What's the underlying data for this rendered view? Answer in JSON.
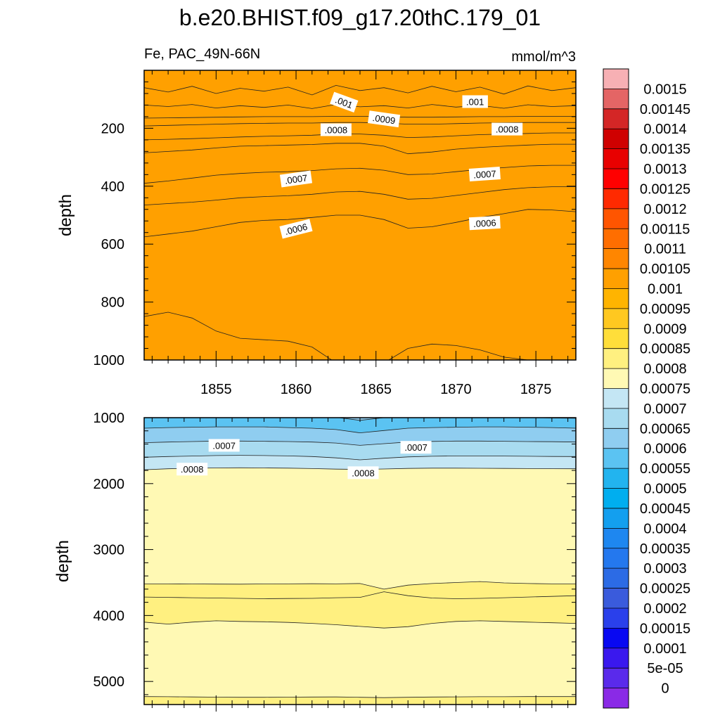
{
  "chart_data": {
    "type": "heatmap",
    "title": "b.e20.BHIST.f09_g17.20thC.179_01",
    "variable_label": "Fe, PAC_49N-66N",
    "units_label": "mmol/m^3",
    "colorbar": {
      "levels": [
        "0.0015",
        "0.00145",
        "0.0014",
        "0.00135",
        "0.0013",
        "0.00125",
        "0.0012",
        "0.00115",
        "0.0011",
        "0.00105",
        "0.001",
        "0.00095",
        "0.0009",
        "0.00085",
        "0.0008",
        "0.00075",
        "0.0007",
        "0.00065",
        "0.0006",
        "0.00055",
        "0.0005",
        "0.00045",
        "0.0004",
        "0.00035",
        "0.0003",
        "0.00025",
        "0.0002",
        "0.00015",
        "0.0001",
        "5e-05",
        "0"
      ],
      "colors": [
        "#f7b0b4",
        "#e46565",
        "#d42626",
        "#cf0000",
        "#e80000",
        "#ff0000",
        "#ff2a00",
        "#ff5500",
        "#ff6e00",
        "#ff8600",
        "#ffa000",
        "#ffb400",
        "#ffc820",
        "#ffde3a",
        "#fff080",
        "#fff9b4",
        "#c4e6f4",
        "#a8dbf0",
        "#8fcdf0",
        "#5bc3f2",
        "#22b4ef",
        "#00aeef",
        "#139fef",
        "#1e87f0",
        "#2478ee",
        "#2c6be5",
        "#3a5bdc",
        "#2a40eb",
        "#0808f2",
        "#3a18ee",
        "#5a2aeb",
        "#8a2ae6"
      ]
    },
    "panels": [
      {
        "name": "upper",
        "ylabel": "depth",
        "ylim": [
          1000,
          0
        ],
        "yticks": [
          200,
          400,
          600,
          800,
          1000
        ],
        "xlim": [
          1850.5,
          1877.5
        ],
        "xticks": [
          1855,
          1860,
          1865,
          1870,
          1875
        ],
        "x_nodes": [
          1850.5,
          1852,
          1853.5,
          1855,
          1856.5,
          1858,
          1859.5,
          1861,
          1862.5,
          1864,
          1865.5,
          1867,
          1868.5,
          1870,
          1871.5,
          1873,
          1874.5,
          1876,
          1877.5
        ],
        "contours": [
          {
            "level": 0.0006,
            "depths": [
              850,
              835,
              855,
              900,
              925,
              930,
              935,
              955,
              1010,
              1010,
              1010,
              960,
              945,
              950,
              965,
              990,
              1000,
              1010,
              1010
            ]
          },
          {
            "level": 0.00065,
            "depths": [
              575,
              565,
              555,
              540,
              525,
              518,
              515,
              508,
              500,
              500,
              515,
              545,
              540,
              525,
              508,
              495,
              480,
              482,
              488
            ]
          },
          {
            "level": 0.0007,
            "depths": [
              465,
              460,
              455,
              448,
              440,
              436,
              433,
              428,
              420,
              418,
              428,
              445,
              442,
              432,
              422,
              412,
              405,
              402,
              402
            ]
          },
          {
            "level": 0.00075,
            "depths": [
              390,
              382,
              372,
              362,
              356,
              352,
              350,
              346,
              340,
              338,
              345,
              360,
              358,
              350,
              342,
              336,
              330,
              328,
              328
            ]
          },
          {
            "level": 0.0008,
            "depths": [
              285,
              280,
              275,
              268,
              262,
              260,
              258,
              256,
              252,
              252,
              262,
              288,
              282,
              272,
              266,
              262,
              258,
              255,
              255
            ]
          },
          {
            "level": 0.00085,
            "depths": [
              240,
              238,
              236,
              233,
              230,
              228,
              226,
              224,
              220,
              220,
              224,
              232,
              230,
              226,
              222,
              220,
              218,
              216,
              216
            ]
          },
          {
            "level": 0.0009,
            "depths": [
              192,
              190,
              188,
              186,
              184,
              183,
              182,
              182,
              180,
              180,
              182,
              186,
              186,
              184,
              182,
              181,
              180,
              180,
              180
            ]
          },
          {
            "level": 0.00095,
            "depths": [
              165,
              164,
              163,
              162,
              161,
              160,
              160,
              160,
              159,
              159,
              160,
              162,
              162,
              161,
              160,
              160,
              159,
              159,
              159
            ]
          },
          {
            "level": 0.001,
            "depths": [
              120,
              125,
              118,
              130,
              122,
              128,
              120,
              132,
              118,
              126,
              122,
              130,
              118,
              127,
              121,
              131,
              119,
              125,
              122
            ]
          },
          {
            "level": 0.00105,
            "depths": [
              60,
              75,
              55,
              80,
              62,
              72,
              58,
              85,
              52,
              70,
              60,
              78,
              55,
              74,
              58,
              82,
              54,
              70,
              60
            ]
          }
        ],
        "contour_labels": [
          {
            "text": ".001",
            "x": 1863,
            "depth": 110,
            "angle": 20
          },
          {
            "text": ".001",
            "x": 1871.2,
            "depth": 108,
            "angle": 0
          },
          {
            "text": ".0009",
            "x": 1865.5,
            "depth": 168,
            "angle": 8
          },
          {
            "text": ".0008",
            "x": 1862.5,
            "depth": 205,
            "angle": 0
          },
          {
            "text": ".0008",
            "x": 1873.2,
            "depth": 203,
            "angle": 0
          },
          {
            "text": ".0007",
            "x": 1860,
            "depth": 375,
            "angle": -8
          },
          {
            "text": ".0007",
            "x": 1871.8,
            "depth": 358,
            "angle": -4
          },
          {
            "text": ".0006",
            "x": 1860,
            "depth": 547,
            "angle": -14
          },
          {
            "text": ".0006",
            "x": 1871.8,
            "depth": 527,
            "angle": -3
          }
        ]
      },
      {
        "name": "lower",
        "ylabel": "depth",
        "ylim": [
          5350,
          1000
        ],
        "yticks": [
          1000,
          2000,
          3000,
          4000,
          5000
        ],
        "xlim": [
          1850.5,
          1877.5
        ],
        "xticks": [
          1855,
          1860,
          1865,
          1870,
          1875
        ],
        "x_nodes": [
          1850.5,
          1852,
          1853.5,
          1855,
          1856.5,
          1858,
          1859.5,
          1861,
          1862.5,
          1864,
          1865.5,
          1867,
          1868.5,
          1870,
          1871.5,
          1873,
          1874.5,
          1876,
          1877.5
        ],
        "contours": [
          {
            "level": 0.0006,
            "depths": [
              995,
              995,
              995,
              995,
              995,
              995,
              995,
              995,
              995,
              1040,
              1000,
              995,
              995,
              995,
              995,
              995,
              995,
              1005,
              1010
            ]
          },
          {
            "level": 0.00065,
            "depths": [
              1160,
              1150,
              1145,
              1140,
              1140,
              1140,
              1150,
              1160,
              1180,
              1230,
              1195,
              1160,
              1150,
              1145,
              1140,
              1140,
              1145,
              1150,
              1160
            ]
          },
          {
            "level": 0.0007,
            "depths": [
              1380,
              1370,
              1362,
              1355,
              1355,
              1358,
              1362,
              1370,
              1385,
              1420,
              1395,
              1370,
              1360,
              1355,
              1355,
              1358,
              1362,
              1365,
              1370
            ]
          },
          {
            "level": 0.00075,
            "depths": [
              1600,
              1590,
              1582,
              1575,
              1572,
              1575,
              1580,
              1590,
              1610,
              1640,
              1615,
              1595,
              1585,
              1580,
              1580,
              1582,
              1585,
              1588,
              1590
            ]
          },
          {
            "level": 0.0008,
            "depths": [
              1790,
              1775,
              1768,
              1762,
              1760,
              1762,
              1765,
              1772,
              1780,
              1785,
              1778,
              1770,
              1765,
              1765,
              1768,
              1770,
              1772,
              1774,
              1775
            ]
          },
          {
            "level": 0.00085,
            "depths": [
              3520,
              3520,
              3522,
              3524,
              3525,
              3522,
              3520,
              3518,
              3520,
              3515,
              3600,
              3540,
              3515,
              3500,
              3485,
              3505,
              3515,
              3520,
              3520
            ]
          },
          {
            "level": 0.00085,
            "depths": [
              3720,
              3725,
              3730,
              3735,
              3740,
              3745,
              3742,
              3740,
              3730,
              3725,
              3640,
              3700,
              3735,
              3745,
              3740,
              3730,
              3720,
              3710,
              3700
            ]
          },
          {
            "level": 0.0008,
            "depths": [
              4100,
              4130,
              4100,
              4080,
              4090,
              4095,
              4105,
              4120,
              4140,
              4165,
              4190,
              4170,
              4120,
              4090,
              4080,
              4090,
              4100,
              4110,
              4120
            ]
          },
          {
            "level": 0.00085,
            "depths": [
              5230,
              5232,
              5235,
              5238,
              5240,
              5240,
              5238,
              5236,
              5235,
              5240,
              5245,
              5240,
              5236,
              5234,
              5232,
              5232,
              5230,
              5230,
              5230
            ]
          }
        ],
        "contour_labels": [
          {
            "text": ".0007",
            "x": 1855.5,
            "depth": 1420,
            "angle": 0
          },
          {
            "text": ".0007",
            "x": 1867.5,
            "depth": 1450,
            "angle": 0
          },
          {
            "text": ".0008",
            "x": 1853.5,
            "depth": 1780,
            "angle": 0
          },
          {
            "text": ".0008",
            "x": 1864.2,
            "depth": 1835,
            "angle": 0
          }
        ]
      }
    ]
  }
}
